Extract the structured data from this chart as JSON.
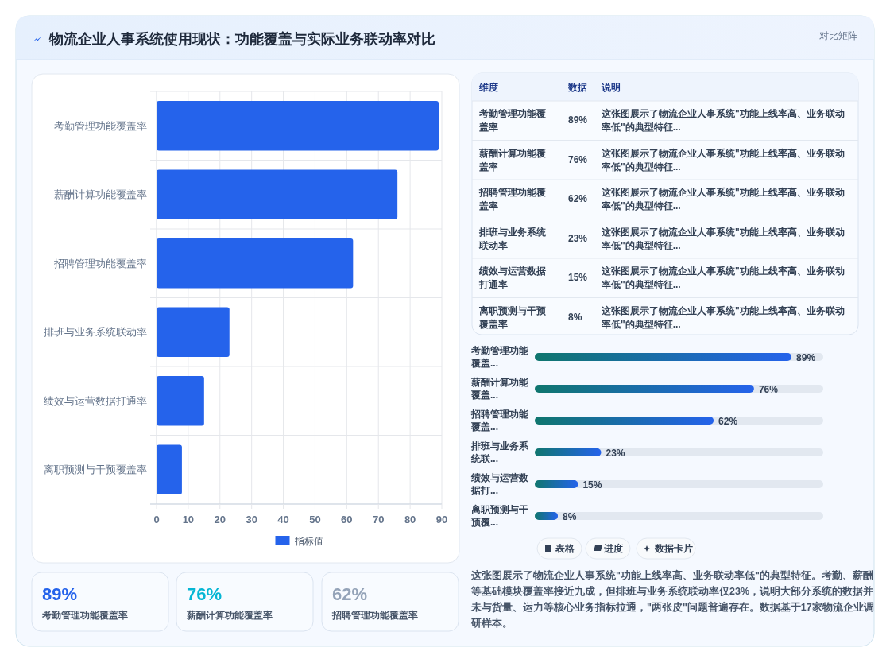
{
  "chart_data": [
    {
      "type": "other",
      "title": "物流企业人事系统使用现状：功能覆盖与实际业务联动率对比",
      "annotations": [
        "对比矩阵"
      ]
    },
    {
      "type": "bar",
      "orientation": "horizontal",
      "categories": [
        "考勤管理功能覆盖率",
        "薪酬计算功能覆盖率",
        "招聘管理功能覆盖率",
        "排班与业务系统联动率",
        "绩效与运营数据打通率",
        "离职预测与干预覆盖率"
      ],
      "series": [
        {
          "name": "指标值",
          "color": "#2563eb",
          "values": [
            89,
            76,
            62,
            23,
            15,
            8
          ]
        }
      ],
      "xlim": [
        0,
        90
      ],
      "xticks": [
        0,
        10,
        20,
        30,
        40,
        50,
        60,
        70,
        80,
        90
      ],
      "grid": true,
      "legend": "bottom"
    },
    {
      "type": "other",
      "annotations": [
        "维度",
        "数据",
        "说明",
        "考勤管理功能覆盖率",
        "89%",
        "这张图展示了物流企业人事系统\"功能上线率高、业务联动率低\"的典型特征...",
        "薪酬计算功能覆盖率",
        "76%",
        "这张图展示了物流企业人事系统\"功能上线率高、业务联动率低\"的典型特征...",
        "招聘管理功能覆盖率",
        "62%",
        "这张图展示了物流企业人事系统\"功能上线率高、业务联动率低\"的典型特征...",
        "排班与业务系统联动率",
        "23%",
        "这张图展示了物流企业人事系统\"功能上线率高、业务联动率低\"的典型特征...",
        "绩效与运营数据打通率",
        "15%",
        "这张图展示了物流企业人事系统\"功能上线率高、业务联动率低\"的典型特征...",
        "离职预测与干预覆盖率",
        "8%",
        "这张图展示了物流企业人事系统\"功能上线率高、业务联动率低\"的典型特征..."
      ]
    },
    {
      "type": "bar",
      "orientation": "horizontal",
      "categories": [
        "考勤管理功能覆盖...",
        "薪酬计算功能覆盖...",
        "招聘管理功能覆盖...",
        "排班与业务系统联...",
        "绩效与运营数据打...",
        "离职预测与干预覆..."
      ],
      "values": [
        89,
        76,
        62,
        23,
        15,
        8
      ],
      "value_labels": [
        "89%",
        "76%",
        "62%",
        "23%",
        "15%",
        "8%"
      ],
      "color": "#2563eb",
      "xlim": [
        0,
        100
      ],
      "tick_labels": "y"
    },
    {
      "type": "other",
      "annotations": [
        "表格",
        "进度",
        "数据卡片",
        "这张图展示了物流企业人事系统\"功能上线率高、业务联动率低\"的典型特征。考勤、薪酬等基础模块覆盖率接近九成，但排班与业务系统联动率仅23%，说明大部分系统的数据并未与货量、运力等核心业务指标拉通，\"两张皮\"问题普遍存在。数据基于17家物流企业调研样本。"
      ]
    },
    {
      "type": "other",
      "annotations": [
        "89%",
        "考勤管理功能覆盖率",
        "76%",
        "薪酬计算功能覆盖率",
        "62%",
        "招聘管理功能覆盖率"
      ],
      "colors": [
        "#2563eb",
        "#06b6d4",
        "#94a3b8"
      ]
    }
  ]
}
